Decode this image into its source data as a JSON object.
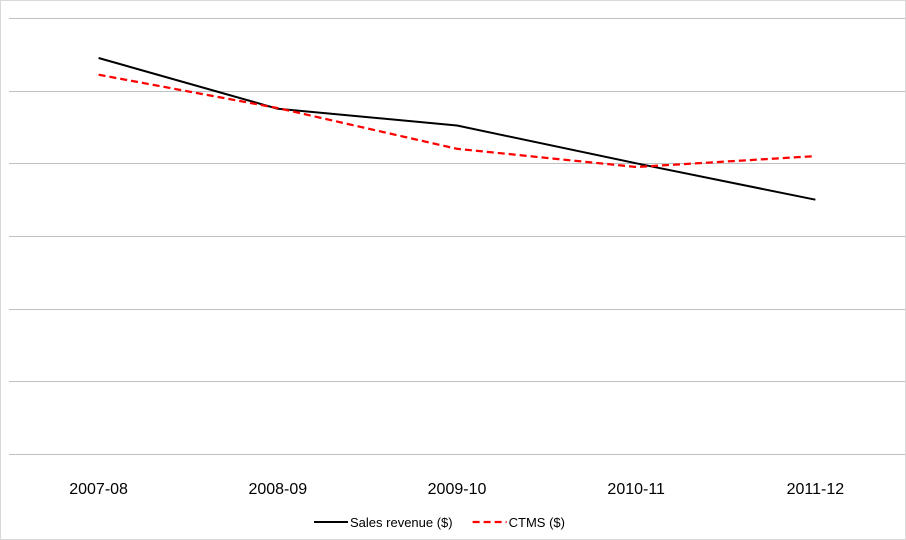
{
  "chart_data": {
    "type": "line",
    "categories": [
      "2007-08",
      "2008-09",
      "2009-10",
      "2010-11",
      "2011-12"
    ],
    "series": [
      {
        "name": "Sales revenue ($)",
        "values": [
          5.45,
          4.75,
          4.52,
          4.0,
          3.5
        ],
        "color": "#000000",
        "style": "solid"
      },
      {
        "name": "CTMS ($)",
        "values": [
          5.22,
          4.76,
          4.2,
          3.95,
          4.1
        ],
        "color": "#ff0000",
        "style": "dashed"
      }
    ],
    "ylim": [
      0,
      6
    ],
    "grid": true,
    "y_tick_labels_shown": false,
    "legend_position": "bottom"
  }
}
